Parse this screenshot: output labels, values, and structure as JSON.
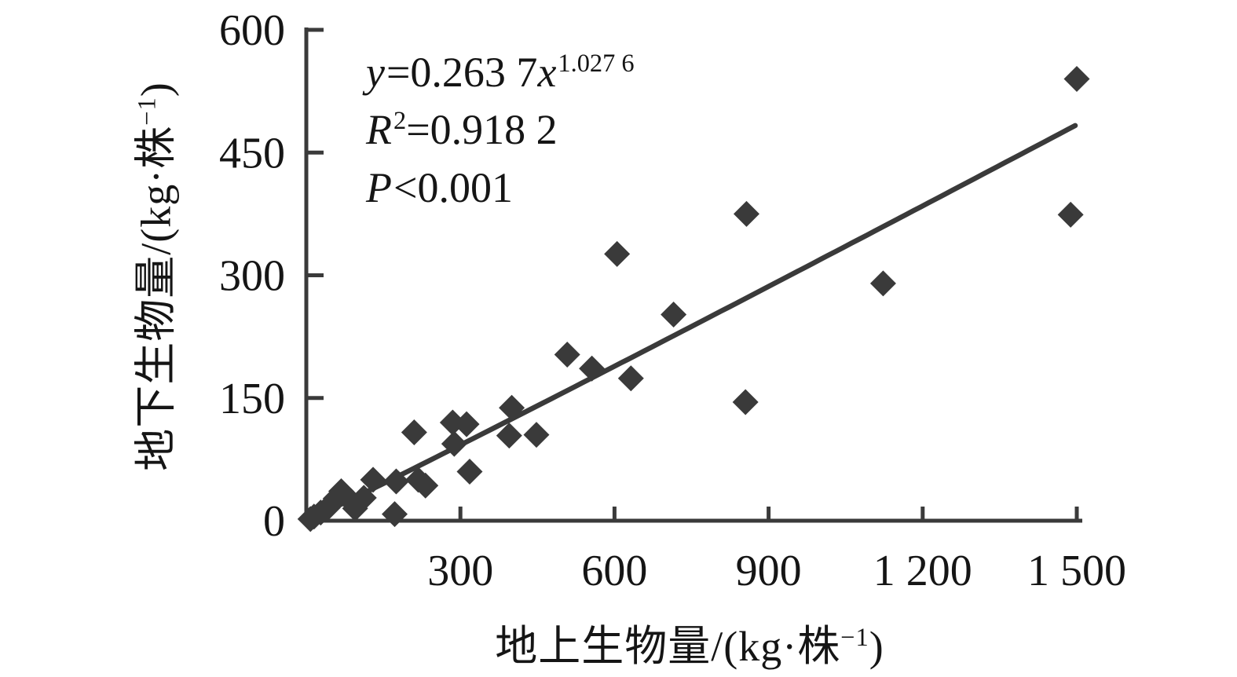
{
  "figure": {
    "background": "#ffffff",
    "ink_color": "#3a3a3a",
    "text_color": "#151515"
  },
  "chart_data": {
    "type": "scatter",
    "title": "",
    "xlabel": "地上生物量/(kg·株−1)",
    "ylabel": "地下生物量/(kg·株−1)",
    "xlabel_parts": {
      "main": "地上生物量/(kg·株",
      "sup": "−1",
      "close": ")"
    },
    "ylabel_parts": {
      "main": "地下生物量/(kg·株",
      "sup": "−1",
      "close": ")"
    },
    "xlim": [
      0,
      1500
    ],
    "ylim": [
      0,
      600
    ],
    "x_ticks": [
      300,
      600,
      900,
      1200,
      1500
    ],
    "x_tick_labels": [
      "300",
      "600",
      "900",
      "1 200",
      "1 500"
    ],
    "y_ticks": [
      0,
      150,
      300,
      450,
      600
    ],
    "y_tick_labels": [
      "0",
      "150",
      "300",
      "450",
      "600"
    ],
    "grid": false,
    "legend": false,
    "marker": "diamond",
    "points": [
      [
        8,
        2
      ],
      [
        15,
        5
      ],
      [
        28,
        10
      ],
      [
        42,
        16
      ],
      [
        57,
        27
      ],
      [
        68,
        36
      ],
      [
        87,
        24
      ],
      [
        95,
        15
      ],
      [
        112,
        28
      ],
      [
        130,
        50
      ],
      [
        172,
        8
      ],
      [
        175,
        48
      ],
      [
        210,
        108
      ],
      [
        218,
        50
      ],
      [
        232,
        43
      ],
      [
        285,
        120
      ],
      [
        312,
        118
      ],
      [
        288,
        94
      ],
      [
        318,
        60
      ],
      [
        400,
        138
      ],
      [
        395,
        104
      ],
      [
        448,
        105
      ],
      [
        508,
        203
      ],
      [
        556,
        186
      ],
      [
        632,
        174
      ],
      [
        605,
        326
      ],
      [
        715,
        252
      ],
      [
        855,
        145
      ],
      [
        857,
        375
      ],
      [
        1123,
        290
      ],
      [
        1488,
        374
      ],
      [
        1500,
        540
      ]
    ],
    "trendline": {
      "type": "power",
      "coefficient": 0.2637,
      "exponent": 1.0276,
      "x_range": [
        12,
        1497
      ]
    },
    "annotation": {
      "line1_full": "y=0.263 7x^1.027 6",
      "line2_full": "R2=0.918 2",
      "line3_full": "P<0.001",
      "eq_lhs": "y",
      "eq_mid": "=0.263 7",
      "eq_var": "x",
      "eq_sup": "1.027 6",
      "r2_base": "R",
      "r2_sup": "2",
      "r2_rest": "=0.918 2",
      "p_base": "P",
      "p_rest": "<0.001"
    }
  }
}
